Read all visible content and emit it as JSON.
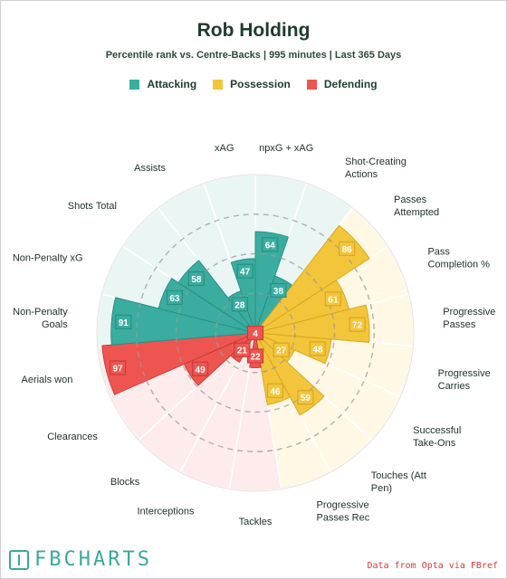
{
  "header": {
    "title": "Rob Holding",
    "subtitle": "Percentile rank vs. Centre-Backs | 995 minutes | Last 365 Days"
  },
  "legend": [
    {
      "label": "Attacking",
      "color": "#3aada0"
    },
    {
      "label": "Possession",
      "color": "#f3c53b"
    },
    {
      "label": "Defending",
      "color": "#ee5551"
    }
  ],
  "footer": {
    "logo_text": "FBCHARTS",
    "logo_icon": "pitch-icon",
    "source": "Data from Opta via FBref"
  },
  "chart_data": {
    "type": "polar-bar",
    "rlim": [
      0,
      100
    ],
    "grid": true,
    "legend_position": "top",
    "categories": [
      {
        "label": "npxG + xAG",
        "group": "Attacking",
        "value": 64
      },
      {
        "label": "Shot-Creating\nActions",
        "group": "Attacking",
        "value": 38
      },
      {
        "label": "Passes\nAttempted",
        "group": "Possession",
        "value": 86
      },
      {
        "label": "Pass\nCompletion %",
        "group": "Possession",
        "value": 61
      },
      {
        "label": "Progressive\nPasses",
        "group": "Possession",
        "value": 72
      },
      {
        "label": "Progressive\nCarries",
        "group": "Possession",
        "value": 48
      },
      {
        "label": "Successful\nTake-Ons",
        "group": "Possession",
        "value": 27
      },
      {
        "label": "Touches (Att\nPen)",
        "group": "Possession",
        "value": 59
      },
      {
        "label": "Progressive\nPasses Rec",
        "group": "Possession",
        "value": 46
      },
      {
        "label": "Tackles",
        "group": "Defending",
        "value": 22
      },
      {
        "label": "Interceptions",
        "group": "Defending",
        "value": 4
      },
      {
        "label": "Blocks",
        "group": "Defending",
        "value": 21
      },
      {
        "label": "Clearances",
        "group": "Defending",
        "value": 49
      },
      {
        "label": "Aerials won",
        "group": "Defending",
        "value": 97
      },
      {
        "label": "Non-Penalty\nGoals",
        "group": "Attacking",
        "value": 91
      },
      {
        "label": "Non-Penalty xG",
        "group": "Attacking",
        "value": 63
      },
      {
        "label": "Shots Total",
        "group": "Attacking",
        "value": 58
      },
      {
        "label": "Assists",
        "group": "Attacking",
        "value": 28
      },
      {
        "label": "xAG",
        "group": "Attacking",
        "value": 47
      }
    ],
    "group_colors": {
      "Attacking": {
        "bar": "#3aada0",
        "edge": "#2b8f84",
        "bg": "#e9f6f3",
        "text": "#ffffff"
      },
      "Possession": {
        "bar": "#f3c53b",
        "edge": "#d9a821",
        "bg": "#fff8e5",
        "text": "#ffffff"
      },
      "Defending": {
        "bar": "#ee5551",
        "edge": "#c93c38",
        "bg": "#fdeceb",
        "text": "#ffffff"
      }
    }
  }
}
